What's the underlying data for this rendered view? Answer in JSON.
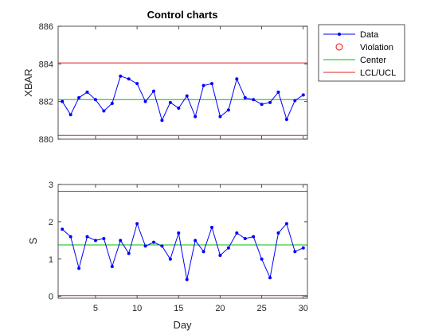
{
  "chart_data": [
    {
      "type": "line",
      "title": "Control charts",
      "xlabel": "",
      "ylabel": "XBAR",
      "xlim": [
        0.5,
        30.5
      ],
      "ylim": [
        880,
        886
      ],
      "yticks": [
        880,
        882,
        884,
        886
      ],
      "xticks": [
        5,
        10,
        15,
        20,
        25,
        30
      ],
      "show_x_tick_labels": false,
      "grid": false,
      "x": [
        1,
        2,
        3,
        4,
        5,
        6,
        7,
        8,
        9,
        10,
        11,
        12,
        13,
        14,
        15,
        16,
        17,
        18,
        19,
        20,
        21,
        22,
        23,
        24,
        25,
        26,
        27,
        28,
        29,
        30
      ],
      "series": [
        {
          "name": "Data",
          "color": "#0000ff",
          "values": [
            882.0,
            881.3,
            882.2,
            882.5,
            882.1,
            881.5,
            881.9,
            883.35,
            883.2,
            882.95,
            882.0,
            882.55,
            881.0,
            881.95,
            881.65,
            882.3,
            881.2,
            882.85,
            882.95,
            881.2,
            881.55,
            883.2,
            882.2,
            882.1,
            881.85,
            881.95,
            882.5,
            881.05,
            882.05,
            882.35
          ]
        },
        {
          "name": "Center",
          "color": "#00c000",
          "constant": 882.1
        },
        {
          "name": "LCL/UCL",
          "color": "#e02020",
          "constants": [
            880.2,
            884.05
          ]
        }
      ]
    },
    {
      "type": "line",
      "title": "",
      "xlabel": "Day",
      "ylabel": "S",
      "xlim": [
        0.5,
        30.5
      ],
      "ylim": [
        -0.05,
        3
      ],
      "yticks": [
        0,
        1,
        2,
        3
      ],
      "xticks": [
        5,
        10,
        15,
        20,
        25,
        30
      ],
      "show_x_tick_labels": true,
      "grid": false,
      "x": [
        1,
        2,
        3,
        4,
        5,
        6,
        7,
        8,
        9,
        10,
        11,
        12,
        13,
        14,
        15,
        16,
        17,
        18,
        19,
        20,
        21,
        22,
        23,
        24,
        25,
        26,
        27,
        28,
        29,
        30
      ],
      "series": [
        {
          "name": "Data",
          "color": "#0000ff",
          "values": [
            1.8,
            1.6,
            0.75,
            1.6,
            1.5,
            1.55,
            0.8,
            1.5,
            1.15,
            1.95,
            1.35,
            1.45,
            1.35,
            1.0,
            1.7,
            0.45,
            1.5,
            1.2,
            1.85,
            1.1,
            1.3,
            1.7,
            1.55,
            1.6,
            1.0,
            0.5,
            1.7,
            1.95,
            1.2,
            1.3
          ]
        },
        {
          "name": "Center",
          "color": "#00c000",
          "constant": 1.38
        },
        {
          "name": "LCL/UCL",
          "color": "#e02020",
          "constants": [
            0.02,
            2.82
          ]
        }
      ]
    }
  ],
  "legend": {
    "placement": "right-outside-top",
    "entries": [
      {
        "label": "Data",
        "color": "#0000ff",
        "symbol": "line-dot"
      },
      {
        "label": "Violation",
        "color": "#ff0000",
        "symbol": "circle"
      },
      {
        "label": "Center",
        "color": "#00c000",
        "symbol": "line"
      },
      {
        "label": "LCL/UCL",
        "color": "#e02020",
        "symbol": "line"
      }
    ]
  }
}
